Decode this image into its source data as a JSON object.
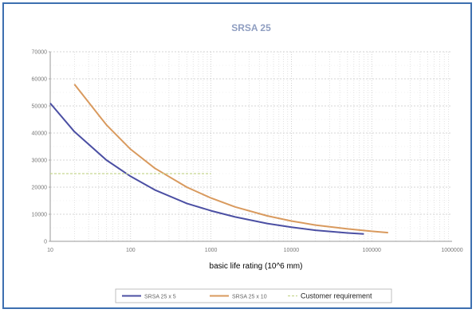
{
  "chart_data": {
    "type": "line",
    "title": "SRSA 25",
    "xlabel": "basic life rating (10^6 mm)",
    "ylabel": "",
    "x_scale": "log",
    "xlim": [
      10,
      1000000
    ],
    "ylim": [
      0,
      70000
    ],
    "x_ticks": [
      "10",
      "100",
      "1000",
      "10000",
      "100000",
      "1000000"
    ],
    "y_ticks": [
      "0",
      "10000",
      "20000",
      "30000",
      "40000",
      "50000",
      "60000",
      "70000"
    ],
    "grid": true,
    "legend_position": "bottom",
    "series": [
      {
        "name": "SRSA 25 x 5",
        "color": "#4b4fa3",
        "x": [
          10,
          20,
          50,
          100,
          200,
          500,
          1000,
          2000,
          5000,
          10000,
          20000,
          50000,
          80000
        ],
        "y": [
          51000,
          40500,
          30000,
          24000,
          19000,
          14000,
          11300,
          9000,
          6600,
          5200,
          4100,
          3100,
          2700
        ]
      },
      {
        "name": "SRSA 25 x 10",
        "color": "#d99a5e",
        "x": [
          20,
          50,
          100,
          200,
          500,
          1000,
          2000,
          5000,
          10000,
          20000,
          50000,
          100000,
          160000
        ],
        "y": [
          58000,
          43000,
          34000,
          27000,
          20000,
          16000,
          12700,
          9400,
          7500,
          6000,
          4600,
          3700,
          3200
        ]
      },
      {
        "name": "Customer requirement",
        "color": "#c8d890",
        "dashed": true,
        "x": [
          10,
          1000
        ],
        "y": [
          25000,
          25000
        ]
      }
    ]
  }
}
